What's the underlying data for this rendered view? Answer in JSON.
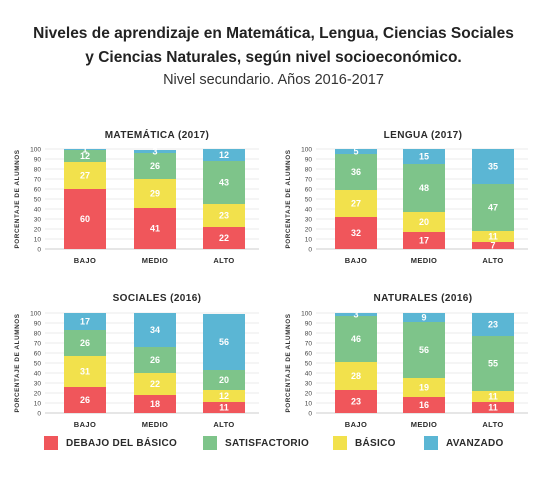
{
  "header": {
    "title_line1": "Niveles de aprendizaje en Matemática, Lengua, Ciencias Sociales",
    "title_line2": "y Ciencias Naturales, según nivel socioeconómico.",
    "subtitle": "Nivel secundario. Años 2016-2017"
  },
  "legend": [
    {
      "label": "DEBAJO DEL BÁSICO",
      "color": "#f0565b"
    },
    {
      "label": "SATISFACTORIO",
      "color": "#7ec48a"
    },
    {
      "label": "BÁSICO",
      "color": "#f2e14c"
    },
    {
      "label": "AVANZADO",
      "color": "#5bb6d4"
    }
  ],
  "chart_data": [
    {
      "type": "bar",
      "stacked": true,
      "title": "MATEMÁTICA (2017)",
      "ylabel": "PORCENTAJE DE ALUMNOS",
      "ylim": [
        0,
        100
      ],
      "yticks": [
        0,
        10,
        20,
        30,
        40,
        50,
        60,
        70,
        80,
        90,
        100
      ],
      "categories": [
        "BAJO",
        "MEDIO",
        "ALTO"
      ],
      "series": [
        {
          "name": "DEBAJO DEL BÁSICO",
          "values": [
            60,
            41,
            22
          ]
        },
        {
          "name": "BÁSICO",
          "values": [
            27,
            29,
            23
          ]
        },
        {
          "name": "SATISFACTORIO",
          "values": [
            12,
            26,
            43
          ]
        },
        {
          "name": "AVANZADO",
          "values": [
            1,
            3,
            12
          ]
        }
      ]
    },
    {
      "type": "bar",
      "stacked": true,
      "title": "LENGUA (2017)",
      "ylabel": "PORCENTAJE DE ALUMNOS",
      "ylim": [
        0,
        100
      ],
      "yticks": [
        0,
        10,
        20,
        30,
        40,
        50,
        60,
        70,
        80,
        90,
        100
      ],
      "categories": [
        "BAJO",
        "MEDIO",
        "ALTO"
      ],
      "series": [
        {
          "name": "DEBAJO DEL BÁSICO",
          "values": [
            32,
            17,
            7
          ]
        },
        {
          "name": "BÁSICO",
          "values": [
            27,
            20,
            11
          ]
        },
        {
          "name": "SATISFACTORIO",
          "values": [
            36,
            48,
            47
          ]
        },
        {
          "name": "AVANZADO",
          "values": [
            5,
            15,
            35
          ]
        }
      ]
    },
    {
      "type": "bar",
      "stacked": true,
      "title": "SOCIALES (2016)",
      "ylabel": "PORCENTAJE DE ALUMNOS",
      "ylim": [
        0,
        100
      ],
      "yticks": [
        0,
        10,
        20,
        30,
        40,
        50,
        60,
        70,
        80,
        90,
        100
      ],
      "categories": [
        "BAJO",
        "MEDIO",
        "ALTO"
      ],
      "series": [
        {
          "name": "DEBAJO DEL BÁSICO",
          "values": [
            26,
            18,
            11
          ]
        },
        {
          "name": "BÁSICO",
          "values": [
            31,
            22,
            12
          ]
        },
        {
          "name": "SATISFACTORIO",
          "values": [
            26,
            26,
            20
          ]
        },
        {
          "name": "AVANZADO",
          "values": [
            17,
            34,
            56
          ]
        }
      ]
    },
    {
      "type": "bar",
      "stacked": true,
      "title": "NATURALES (2016)",
      "ylabel": "PORCENTAJE DE ALUMNOS",
      "ylim": [
        0,
        100
      ],
      "yticks": [
        0,
        10,
        20,
        30,
        40,
        50,
        60,
        70,
        80,
        90,
        100
      ],
      "categories": [
        "BAJO",
        "MEDIO",
        "ALTO"
      ],
      "series": [
        {
          "name": "DEBAJO DEL BÁSICO",
          "values": [
            23,
            16,
            11
          ]
        },
        {
          "name": "BÁSICO",
          "values": [
            28,
            19,
            11
          ]
        },
        {
          "name": "SATISFACTORIO",
          "values": [
            46,
            56,
            55
          ]
        },
        {
          "name": "AVANZADO",
          "values": [
            3,
            9,
            23
          ]
        }
      ]
    }
  ]
}
